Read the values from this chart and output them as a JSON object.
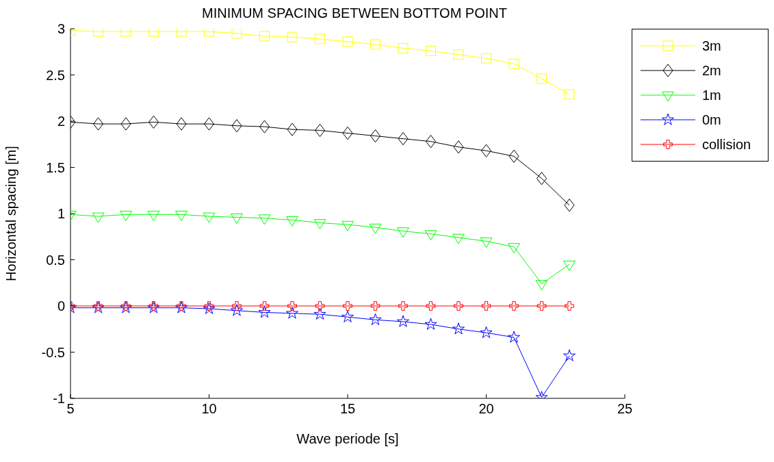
{
  "chart_data": {
    "type": "line",
    "title": "MINIMUM SPACING BETWEEN BOTTOM POINT",
    "xlabel": "Wave periode [s]",
    "ylabel": "Horizontal spacing [m]",
    "x": [
      5,
      6,
      7,
      8,
      9,
      10,
      11,
      12,
      13,
      14,
      15,
      16,
      17,
      18,
      19,
      20,
      21,
      22,
      23
    ],
    "xlim": [
      5,
      25
    ],
    "xticks": [
      5,
      10,
      15,
      20,
      25
    ],
    "ylim": [
      -1,
      3
    ],
    "yticks": [
      -1,
      -0.5,
      0,
      0.5,
      1,
      1.5,
      2,
      2.5,
      3
    ],
    "grid": false,
    "legend": "top right",
    "line_style": "solid",
    "series": [
      {
        "name": "3m",
        "color": "#ffff00",
        "marker": "square",
        "values": [
          2.98,
          2.97,
          2.97,
          2.97,
          2.97,
          2.97,
          2.95,
          2.92,
          2.91,
          2.89,
          2.86,
          2.83,
          2.79,
          2.76,
          2.72,
          2.68,
          2.62,
          2.46,
          2.29
        ]
      },
      {
        "name": "2m",
        "color": "#000000",
        "marker": "diamond",
        "values": [
          1.99,
          1.97,
          1.97,
          1.99,
          1.97,
          1.97,
          1.95,
          1.94,
          1.91,
          1.9,
          1.87,
          1.84,
          1.81,
          1.78,
          1.72,
          1.68,
          1.62,
          1.38,
          1.09
        ]
      },
      {
        "name": "1m",
        "color": "#00ff00",
        "marker": "triangle",
        "values": [
          0.99,
          0.97,
          0.99,
          0.99,
          0.99,
          0.97,
          0.96,
          0.95,
          0.93,
          0.9,
          0.88,
          0.85,
          0.81,
          0.78,
          0.74,
          0.7,
          0.64,
          0.24,
          0.45
        ]
      },
      {
        "name": "0m",
        "color": "#0000ff",
        "marker": "star",
        "values": [
          -0.02,
          -0.02,
          -0.02,
          -0.02,
          -0.02,
          -0.03,
          -0.05,
          -0.07,
          -0.08,
          -0.09,
          -0.12,
          -0.15,
          -0.17,
          -0.2,
          -0.25,
          -0.29,
          -0.34,
          -0.99,
          -0.54
        ]
      },
      {
        "name": "collision",
        "color": "#ff0000",
        "marker": "cross",
        "values": [
          0,
          0,
          0,
          0,
          0,
          0,
          0,
          0,
          0,
          0,
          0,
          0,
          0,
          0,
          0,
          0,
          0,
          0,
          0
        ]
      }
    ]
  }
}
